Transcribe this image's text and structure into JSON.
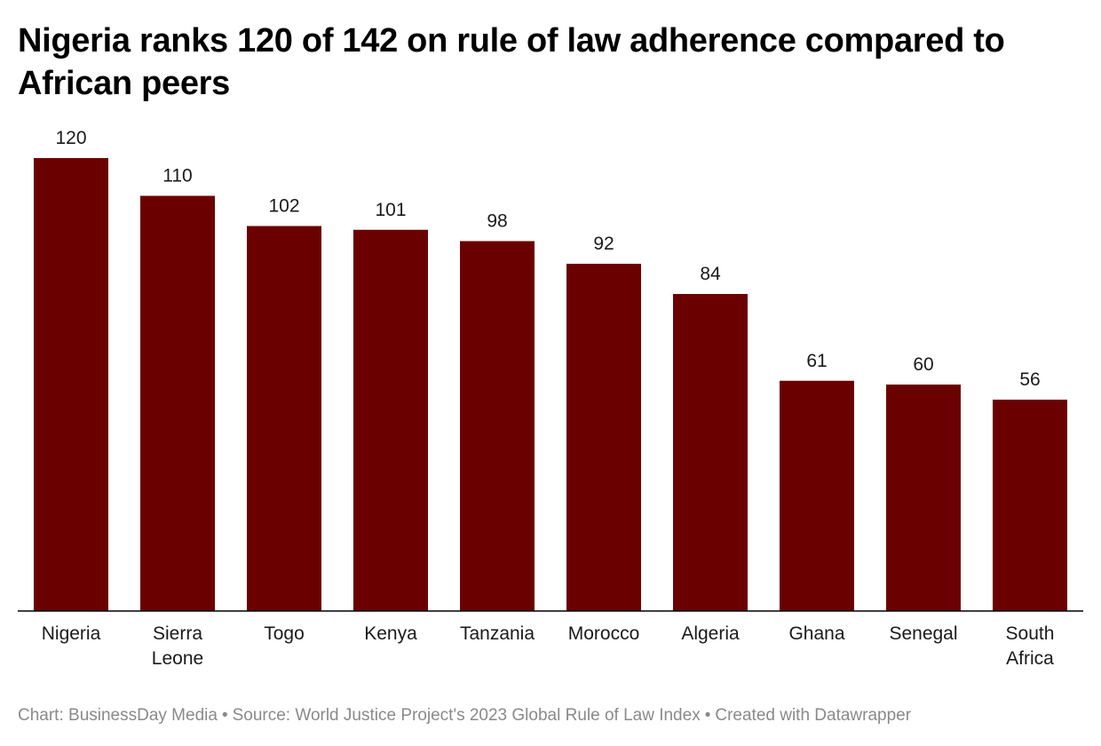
{
  "title": "Nigeria ranks 120 of 142 on rule of law adherence compared to African peers",
  "colors": {
    "bar": "#6b0000",
    "axis": "#000000",
    "label": "#1a1a1a",
    "footer": "#8a8a8a"
  },
  "chart_data": {
    "type": "bar",
    "categories": [
      [
        "Nigeria"
      ],
      [
        "Sierra",
        "Leone"
      ],
      [
        "Togo"
      ],
      [
        "Kenya"
      ],
      [
        "Tanzania"
      ],
      [
        "Morocco"
      ],
      [
        "Algeria"
      ],
      [
        "Ghana"
      ],
      [
        "Senegal"
      ],
      [
        "South",
        "Africa"
      ]
    ],
    "values": [
      120,
      110,
      102,
      101,
      98,
      92,
      84,
      61,
      60,
      56
    ],
    "ylim": [
      0,
      120
    ],
    "grid": false,
    "value_labels": true
  },
  "footer": {
    "chart_credit": "Chart: BusinessDay Media",
    "source": "Source: World Justice Project's 2023 Global Rule of Law Index",
    "created_with": "Created with Datawrapper",
    "separator": "•"
  }
}
